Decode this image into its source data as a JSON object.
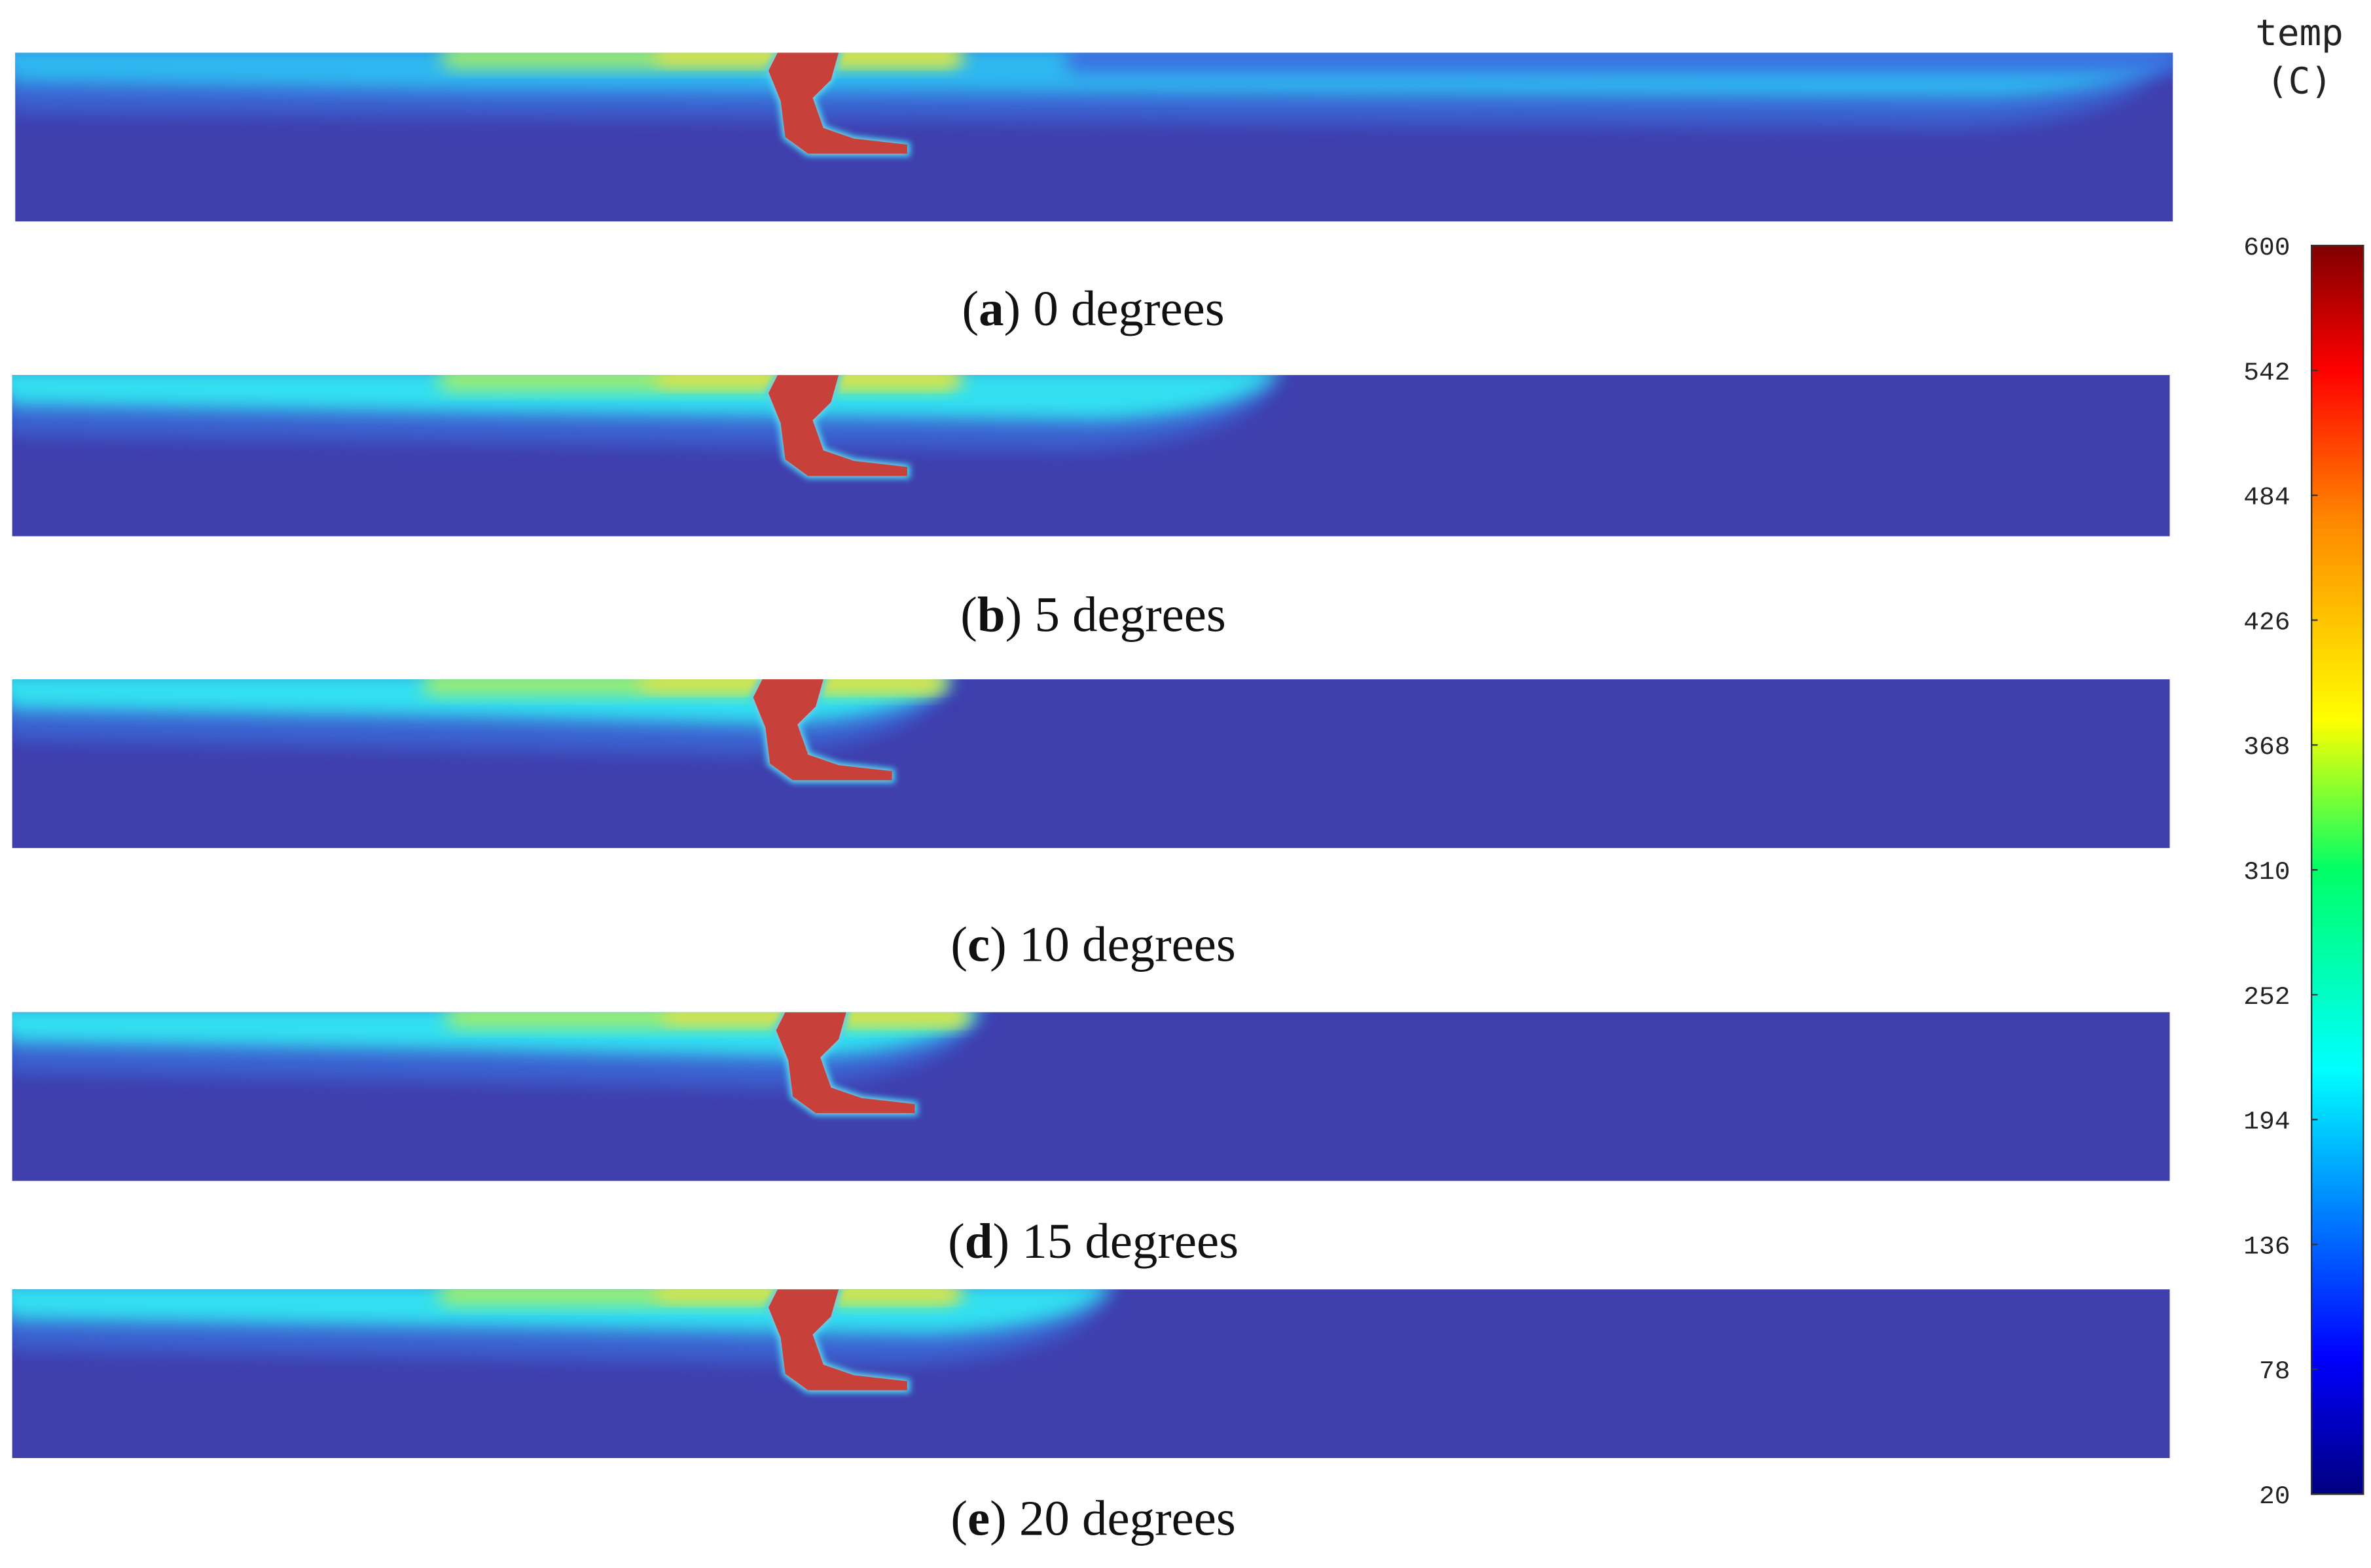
{
  "panels": [
    {
      "caption": [
        "(",
        "a",
        ") 0 degrees"
      ]
    },
    {
      "caption": [
        "(",
        "b",
        ") 5 degrees"
      ]
    },
    {
      "caption": [
        "(",
        "c",
        ") 10 degrees"
      ]
    },
    {
      "caption": [
        "(",
        "d",
        ") 15 degrees"
      ]
    },
    {
      "caption": [
        "(",
        "e",
        ") 20 degrees"
      ]
    }
  ],
  "colorbar": {
    "title": [
      "temp",
      "(C)"
    ],
    "lim": [
      20,
      600
    ],
    "ticks": [
      600,
      542,
      484,
      426,
      368,
      310,
      252,
      194,
      136,
      78,
      20
    ]
  }
}
